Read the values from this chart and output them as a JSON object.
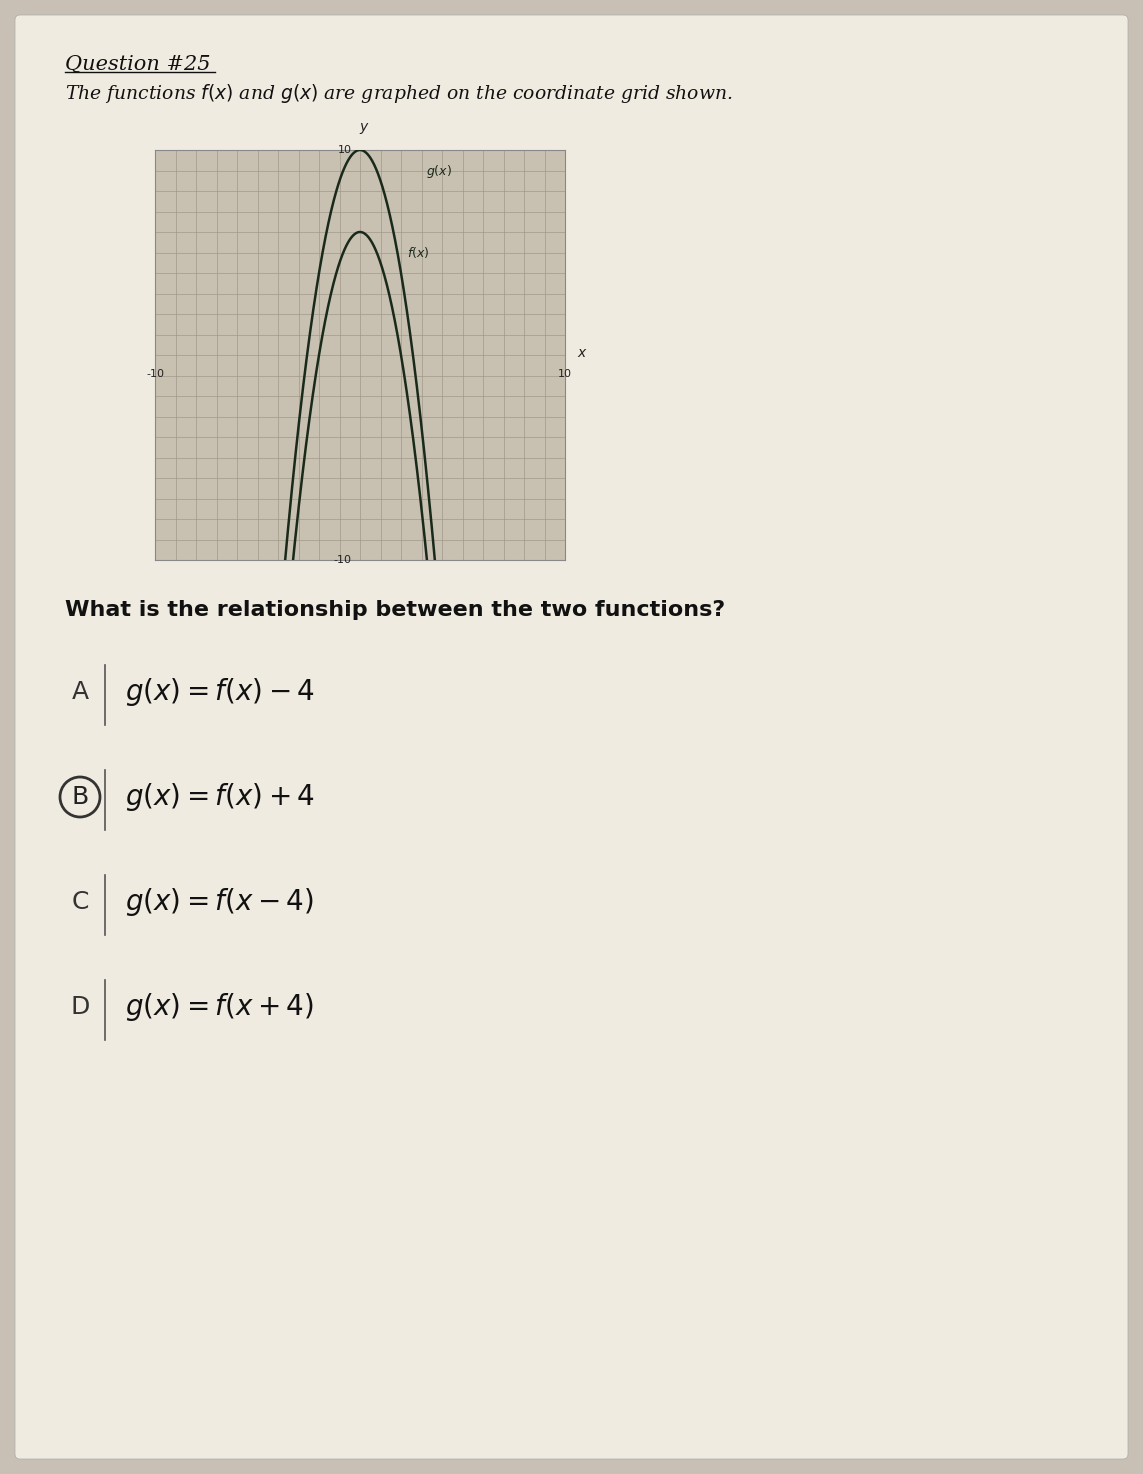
{
  "title_line1": "Question #25",
  "title_line2": "The functions $f(x)$ and $g(x)$ are graphed on the coordinate grid shown.",
  "question": "What is the relationship between the two functions?",
  "bg_color": "#c8c0b4",
  "paper_color": "#f0ebe0",
  "grid_bg_color": "#c8c0b0",
  "grid_color": "#a09888",
  "axis_color": "#222222",
  "curve_color": "#1a2a1a",
  "xlim": [
    -10,
    10
  ],
  "ylim": [
    -10,
    10
  ],
  "choices": [
    {
      "label": "A",
      "text": "$g(x) = f(x) - 4$",
      "circled": false
    },
    {
      "label": "B",
      "text": "$g(x) = f(x) + 4$",
      "circled": true
    },
    {
      "label": "C",
      "text": "$g(x) = f(x - 4)$",
      "circled": false
    },
    {
      "label": "D",
      "text": "$g(x) = f(x + 4)$",
      "circled": false
    }
  ]
}
